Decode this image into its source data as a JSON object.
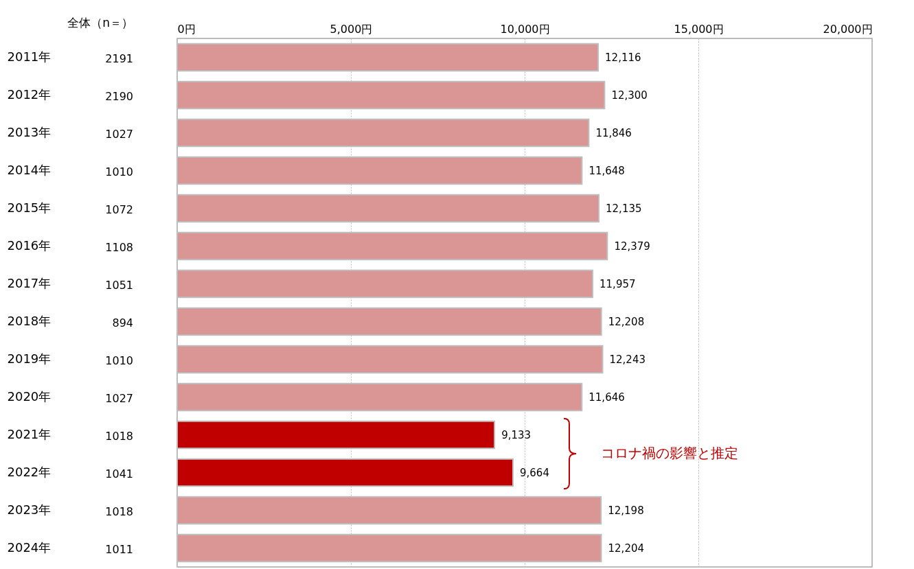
{
  "chart_data": {
    "type": "bar",
    "orientation": "horizontal",
    "categories": [
      "2011年",
      "2012年",
      "2013年",
      "2014年",
      "2015年",
      "2016年",
      "2017年",
      "2018年",
      "2019年",
      "2020年",
      "2021年",
      "2022年",
      "2023年",
      "2024年"
    ],
    "values": [
      12116,
      12300,
      11846,
      11648,
      12135,
      12379,
      11957,
      12208,
      12243,
      11646,
      9133,
      9664,
      12198,
      12204
    ],
    "colors": [
      "#d99694",
      "#d99694",
      "#d99694",
      "#d99694",
      "#d99694",
      "#d99694",
      "#d99694",
      "#d99694",
      "#d99694",
      "#d99694",
      "#c00000",
      "#c00000",
      "#d99694",
      "#d99694"
    ],
    "xlim": [
      0,
      20000
    ],
    "xticks": [
      {
        "value": 0,
        "label": "0円"
      },
      {
        "value": 5000,
        "label": "5,000円"
      },
      {
        "value": 10000,
        "label": "10,000円"
      },
      {
        "value": 15000,
        "label": "15,000円"
      },
      {
        "value": 20000,
        "label": "20,000円"
      }
    ],
    "grid": "x",
    "value_labels": [
      "12,116",
      "12,300",
      "11,846",
      "11,648",
      "12,135",
      "12,379",
      "11,957",
      "12,208",
      "12,243",
      "11,646",
      "9,133",
      "9,664",
      "12,198",
      "12,204"
    ],
    "annotations": [
      "全体（n＝）",
      "2191",
      "2190",
      "1027",
      "1010",
      "1072",
      "1108",
      "1051",
      "894",
      "1010",
      "1027",
      "1018",
      "1041",
      "1018",
      "1011",
      "コロナ禍の影響と推定"
    ]
  }
}
